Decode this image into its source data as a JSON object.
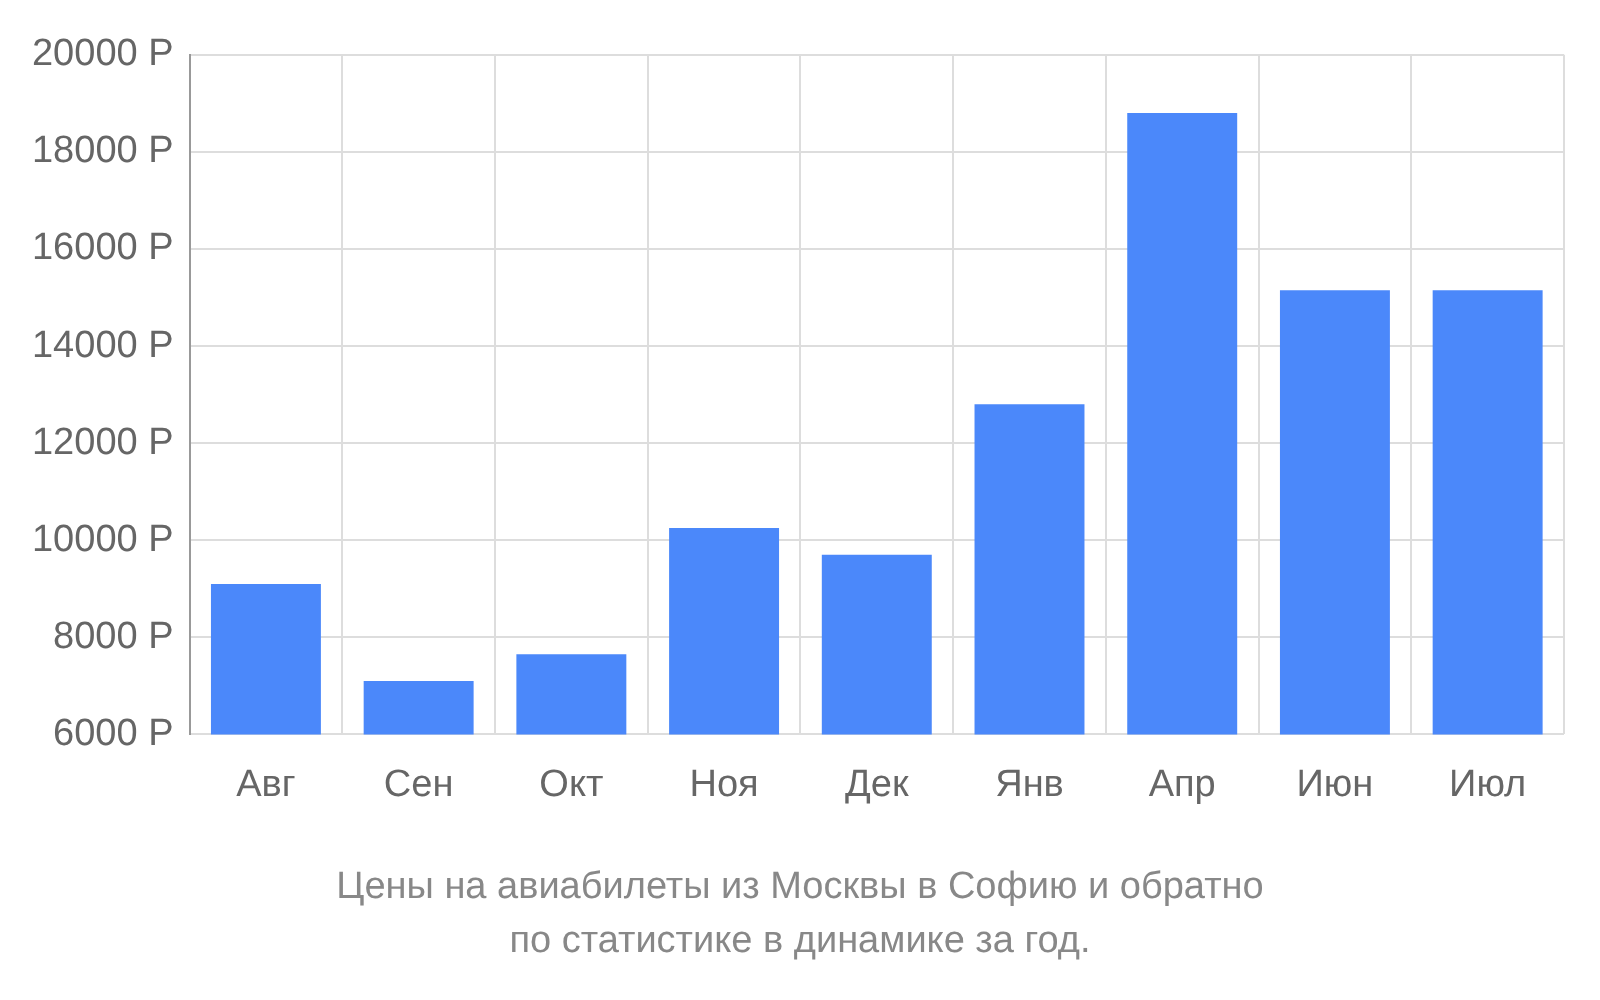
{
  "chart_data": {
    "type": "bar",
    "categories": [
      "Авг",
      "Сен",
      "Окт",
      "Ноя",
      "Дек",
      "Янв",
      "Апр",
      "Июн",
      "Июл"
    ],
    "values": [
      9100,
      7100,
      7650,
      10250,
      9700,
      12800,
      18800,
      15150,
      15150
    ],
    "color": "#4b88fa",
    "ylim": [
      6000,
      20000
    ],
    "yticks": [
      {
        "value": 6000,
        "label": "6000 Р"
      },
      {
        "value": 8000,
        "label": "8000 Р"
      },
      {
        "value": 10000,
        "label": "10000 Р"
      },
      {
        "value": 12000,
        "label": "12000 Р"
      },
      {
        "value": 14000,
        "label": "14000 Р"
      },
      {
        "value": 16000,
        "label": "16000 Р"
      },
      {
        "value": 18000,
        "label": "18000 Р"
      },
      {
        "value": 20000,
        "label": "20000 Р"
      }
    ],
    "grid": true,
    "legend": false,
    "annotations": [
      "Цены на авиабилеты из Москвы в Софию и обратно",
      "по статистике в динамике за год."
    ]
  }
}
